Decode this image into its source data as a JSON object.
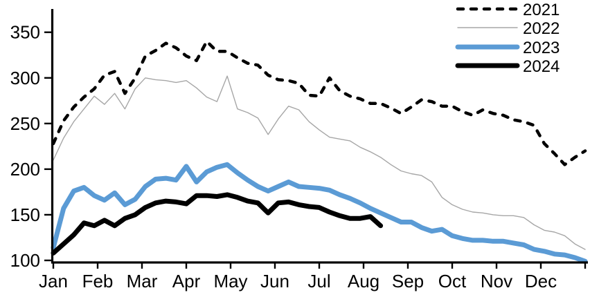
{
  "chart_data": {
    "type": "line",
    "title": "",
    "x_unit": "weekly",
    "x_axis": {
      "months": [
        "Jan",
        "Feb",
        "Mar",
        "Apr",
        "May",
        "Jun",
        "Jul",
        "Aug",
        "Sep",
        "Oct",
        "Nov",
        "Dec"
      ],
      "tick_count": 13
    },
    "y_axis": {
      "ticks": [
        350,
        300,
        250,
        200,
        150,
        100
      ],
      "range": [
        100,
        375
      ]
    },
    "legend": {
      "position": "top-right",
      "entries": [
        "2021",
        "2022",
        "2023",
        "2024"
      ]
    },
    "grid": false,
    "series": [
      {
        "name": "2022",
        "color": "#A6A6A6",
        "style": "solid",
        "width": 1.4,
        "values": [
          210,
          234,
          252,
          266,
          280,
          271,
          283,
          266,
          288,
          300,
          298,
          297,
          295,
          297,
          289,
          279,
          274,
          302,
          266,
          262,
          256,
          238,
          255,
          269,
          265,
          252,
          243,
          235,
          233,
          231,
          224,
          219,
          213,
          205,
          198,
          195,
          193,
          186,
          169,
          161,
          156,
          153,
          152,
          150,
          149,
          149,
          147,
          139,
          133,
          131,
          127,
          118,
          112
        ]
      },
      {
        "name": "2021",
        "color": "#000000",
        "style": "dashed",
        "width": 4.5,
        "values": [
          228,
          253,
          268,
          279,
          288,
          303,
          307,
          283,
          300,
          324,
          330,
          338,
          333,
          324,
          319,
          340,
          329,
          329,
          322,
          316,
          314,
          303,
          298,
          297,
          294,
          281,
          280,
          300,
          286,
          280,
          277,
          272,
          272,
          267,
          261,
          268,
          276,
          274,
          269,
          269,
          263,
          259,
          265,
          261,
          259,
          254,
          252,
          248,
          228,
          217,
          205,
          213,
          220
        ]
      },
      {
        "name": "2023",
        "color": "#5B9BD5",
        "style": "solid",
        "width": 7,
        "values": [
          114,
          157,
          176,
          180,
          171,
          166,
          174,
          161,
          167,
          181,
          189,
          190,
          188,
          203,
          186,
          197,
          202,
          205,
          196,
          188,
          181,
          176,
          181,
          186,
          181,
          180,
          179,
          177,
          172,
          168,
          163,
          157,
          152,
          147,
          142,
          142,
          136,
          132,
          134,
          127,
          124,
          122,
          122,
          121,
          121,
          119,
          117,
          112,
          110,
          107,
          106,
          103,
          99
        ]
      },
      {
        "name": "2024",
        "color": "#000000",
        "style": "solid",
        "width": 7,
        "values": [
          108,
          118,
          128,
          141,
          138,
          144,
          138,
          146,
          150,
          158,
          163,
          165,
          164,
          162,
          171,
          171,
          170,
          172,
          169,
          165,
          163,
          152,
          163,
          164,
          161,
          159,
          158,
          153,
          149,
          146,
          146,
          148,
          138
        ]
      }
    ],
    "legend_order": [
      "2021",
      "2022",
      "2023",
      "2024"
    ]
  },
  "colors": {
    "axis": "#000000",
    "background": "#ffffff",
    "accent_blue": "#5B9BD5",
    "gray_series": "#A6A6A6"
  }
}
